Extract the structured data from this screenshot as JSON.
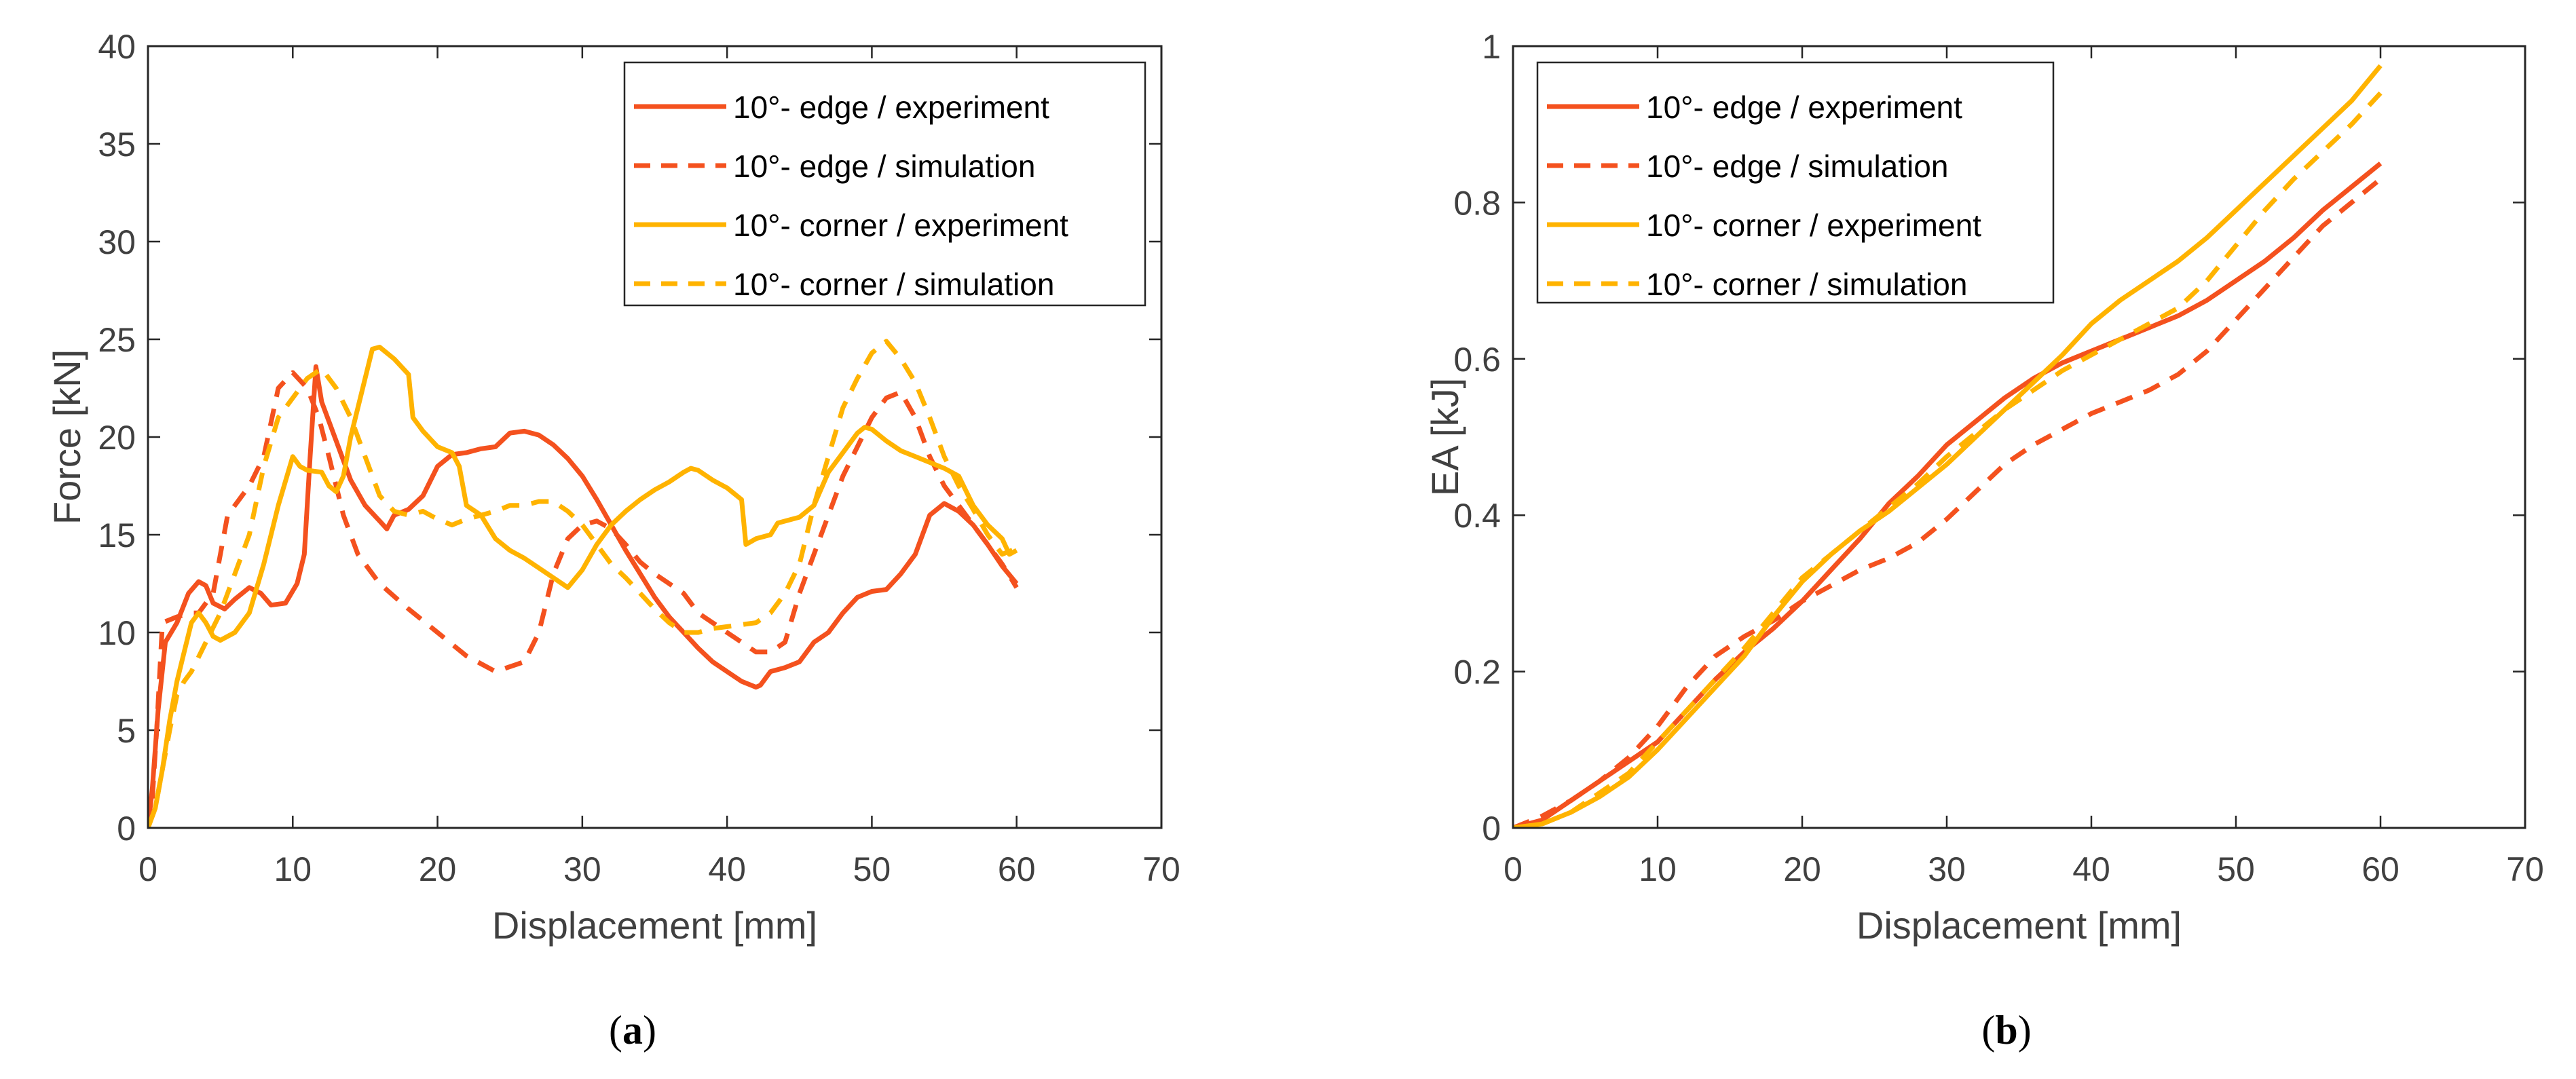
{
  "colors": {
    "edge": "#F4511E",
    "corner": "#FFB300",
    "axis": "#262626"
  },
  "captions": [
    {
      "open": "(",
      "letter": "a",
      "close": ")"
    },
    {
      "open": "(",
      "letter": "b",
      "close": ")"
    }
  ],
  "chart_data": [
    {
      "type": "line",
      "xlabel": "Displacement [mm]",
      "ylabel": "Force [kN]",
      "xlim": [
        0,
        70
      ],
      "ylim": [
        0,
        40
      ],
      "xticks": [
        0,
        10,
        20,
        30,
        40,
        50,
        60,
        70
      ],
      "yticks": [
        0,
        5,
        10,
        15,
        20,
        25,
        30,
        35,
        40
      ],
      "grid": false,
      "legend_position": "top-right",
      "series": [
        {
          "name": "10°- edge / experiment",
          "color_key": "edge",
          "style": "solid",
          "x": [
            0,
            0.3,
            0.7,
            1.2,
            2,
            2.8,
            3.5,
            4,
            4.5,
            5.3,
            6,
            7,
            7.8,
            8.5,
            9.5,
            10.3,
            10.8,
            11.2,
            11.6,
            12,
            13,
            14,
            15,
            16,
            16.5,
            17,
            18,
            19,
            20,
            21,
            22,
            23,
            24,
            25,
            26,
            27,
            28,
            29,
            30,
            31,
            32,
            33,
            34,
            35,
            36,
            37,
            38,
            39,
            40,
            41,
            42,
            42.3,
            43,
            44,
            45,
            46,
            47,
            48,
            49,
            50,
            51,
            52,
            53,
            54,
            55,
            56,
            57,
            58,
            59,
            60
          ],
          "y": [
            0,
            2,
            6,
            9.5,
            10.5,
            12,
            12.6,
            12.4,
            11.5,
            11.2,
            11.7,
            12.3,
            12,
            11.4,
            11.5,
            12.5,
            14,
            19,
            23.6,
            21.8,
            19.8,
            17.8,
            16.5,
            15.7,
            15.3,
            16,
            16.3,
            17,
            18.5,
            19.1,
            19.2,
            19.4,
            19.5,
            20.2,
            20.3,
            20.1,
            19.6,
            18.9,
            18,
            16.8,
            15.5,
            14.2,
            13,
            11.8,
            10.8,
            10,
            9.2,
            8.5,
            8,
            7.5,
            7.2,
            7.3,
            8,
            8.2,
            8.5,
            9.5,
            10,
            11,
            11.8,
            12.1,
            12.2,
            13,
            14,
            16,
            16.6,
            16.2,
            15.5,
            14.5,
            13.4,
            12.5
          ]
        },
        {
          "name": "10°- edge / simulation",
          "color_key": "edge",
          "style": "dashed",
          "x": [
            0,
            0.3,
            0.6,
            1,
            2,
            3,
            3.5,
            4.5,
            5.5,
            7,
            8,
            9,
            10,
            11,
            11.8,
            12.5,
            13.5,
            14.5,
            16,
            18,
            20,
            22,
            24,
            26,
            27,
            28,
            29,
            30,
            31,
            32,
            33,
            34,
            35,
            36,
            37,
            38,
            40,
            41,
            42,
            43,
            44,
            45,
            46,
            47,
            48,
            49,
            50,
            51,
            52,
            53,
            54,
            55,
            56,
            57,
            58,
            59,
            60
          ],
          "y": [
            0,
            1.5,
            5,
            10.5,
            10.8,
            11,
            11,
            12,
            16,
            17.5,
            19,
            22.5,
            23.3,
            22.5,
            21,
            19,
            16,
            14,
            12.5,
            11.2,
            10,
            8.8,
            8,
            8.5,
            10,
            13,
            14.8,
            15.5,
            15.7,
            15.3,
            14.5,
            13.6,
            13,
            12.5,
            12,
            11,
            10,
            9.5,
            9,
            9,
            9.5,
            12,
            14,
            16,
            18,
            19.5,
            21,
            22,
            22.3,
            21,
            19,
            17.5,
            16.5,
            15.5,
            14.5,
            13.5,
            12.3
          ]
        },
        {
          "name": "10°- corner / experiment",
          "color_key": "corner",
          "style": "solid",
          "x": [
            0,
            0.5,
            1,
            1.5,
            2,
            2.5,
            3,
            3.5,
            4,
            4.5,
            5,
            6,
            7,
            8,
            9,
            10,
            10.5,
            11,
            12,
            12.5,
            13,
            13.5,
            14,
            15,
            15.5,
            16,
            17,
            18,
            18.3,
            19,
            20,
            21,
            21.5,
            22,
            23,
            24,
            25,
            26,
            27,
            28,
            29,
            30,
            31,
            32,
            33,
            34,
            35,
            36,
            37,
            37.5,
            38,
            39,
            40,
            41,
            41.3,
            42,
            43,
            43.5,
            45,
            46,
            47,
            48,
            49,
            49.5,
            50,
            51,
            52,
            53,
            54,
            55,
            56,
            57,
            58,
            59,
            59.5,
            60
          ],
          "y": [
            0,
            1,
            3,
            5.5,
            7.5,
            9,
            10.5,
            11,
            10.5,
            9.8,
            9.6,
            10,
            11,
            13.5,
            16.5,
            19,
            18.5,
            18.3,
            18.2,
            17.5,
            17.2,
            18,
            20,
            23,
            24.5,
            24.6,
            24,
            23.2,
            21,
            20.3,
            19.5,
            19.2,
            18.5,
            16.5,
            16,
            14.8,
            14.2,
            13.8,
            13.3,
            12.8,
            12.3,
            13.2,
            14.5,
            15.5,
            16.2,
            16.8,
            17.3,
            17.7,
            18.2,
            18.4,
            18.3,
            17.8,
            17.4,
            16.8,
            14.5,
            14.8,
            15,
            15.6,
            15.9,
            16.5,
            18.2,
            19.2,
            20.2,
            20.5,
            20.4,
            19.8,
            19.3,
            19,
            18.7,
            18.4,
            18,
            16.5,
            15.5,
            14.8,
            14,
            14.2
          ]
        },
        {
          "name": "10°- corner / simulation",
          "color_key": "corner",
          "style": "dashed",
          "x": [
            0,
            0.5,
            1,
            1.5,
            2,
            2.5,
            3,
            4,
            5,
            6,
            7,
            8,
            9,
            10,
            11,
            12,
            13,
            14,
            15,
            16,
            17,
            18,
            19,
            20,
            21,
            22,
            23,
            24,
            25,
            26,
            27,
            28,
            29,
            30,
            31,
            32,
            33,
            34,
            35,
            36,
            37,
            38,
            39,
            40,
            41,
            42,
            43,
            44,
            45,
            46,
            47,
            48,
            49,
            50,
            51,
            52,
            53,
            54,
            55,
            56,
            57,
            58,
            59,
            60
          ],
          "y": [
            0,
            1,
            3,
            5,
            6.8,
            7.5,
            8,
            9.5,
            11,
            13,
            15,
            18.5,
            21,
            22,
            23,
            23.5,
            22.5,
            21,
            19,
            17,
            16.2,
            16,
            16.2,
            15.8,
            15.5,
            15.8,
            16,
            16.2,
            16.5,
            16.5,
            16.7,
            16.7,
            16.2,
            15.5,
            14.5,
            13.5,
            12.8,
            12,
            11.2,
            10.5,
            10,
            10,
            10.2,
            10.3,
            10.4,
            10.5,
            11,
            12,
            13.5,
            16.5,
            19,
            21.5,
            23,
            24.3,
            24.9,
            24,
            22.8,
            21,
            19,
            17.5,
            16.3,
            15,
            14,
            14.3
          ]
        }
      ]
    },
    {
      "type": "line",
      "xlabel": "Displacement [mm]",
      "ylabel": "EA [kJ]",
      "xlim": [
        0,
        70
      ],
      "ylim": [
        0,
        1
      ],
      "xticks": [
        0,
        10,
        20,
        30,
        40,
        50,
        60,
        70
      ],
      "yticks": [
        0,
        0.2,
        0.4,
        0.6,
        0.8,
        1
      ],
      "ytick_labels": [
        "0",
        "0.2",
        "0.4",
        "0.6",
        "0.8",
        "1"
      ],
      "grid": false,
      "legend_position": "top-left",
      "series": [
        {
          "name": "10°- edge / experiment",
          "color_key": "edge",
          "style": "solid",
          "x": [
            0,
            2,
            4,
            6,
            8,
            10,
            12,
            14,
            16,
            18,
            20,
            22,
            24,
            26,
            28,
            30,
            32,
            34,
            36,
            38,
            40,
            42,
            44,
            46,
            48,
            50,
            52,
            54,
            56,
            58,
            60
          ],
          "y": [
            0,
            0.01,
            0.035,
            0.06,
            0.085,
            0.11,
            0.15,
            0.19,
            0.225,
            0.255,
            0.29,
            0.33,
            0.37,
            0.415,
            0.45,
            0.49,
            0.52,
            0.55,
            0.575,
            0.595,
            0.61,
            0.625,
            0.64,
            0.655,
            0.675,
            0.7,
            0.725,
            0.755,
            0.79,
            0.82,
            0.85
          ]
        },
        {
          "name": "10°- edge / simulation",
          "color_key": "edge",
          "style": "dashed",
          "x": [
            0,
            2,
            4,
            6,
            8,
            10,
            12,
            14,
            16,
            18,
            20,
            22,
            24,
            26,
            28,
            30,
            32,
            34,
            36,
            38,
            40,
            42,
            44,
            46,
            48,
            50,
            52,
            54,
            56,
            58,
            60
          ],
          "y": [
            0,
            0.015,
            0.035,
            0.06,
            0.09,
            0.13,
            0.18,
            0.22,
            0.245,
            0.265,
            0.29,
            0.31,
            0.33,
            0.345,
            0.365,
            0.395,
            0.43,
            0.465,
            0.49,
            0.51,
            0.53,
            0.545,
            0.56,
            0.58,
            0.61,
            0.65,
            0.69,
            0.73,
            0.77,
            0.8,
            0.83
          ]
        },
        {
          "name": "10°- corner / experiment",
          "color_key": "corner",
          "style": "solid",
          "x": [
            0,
            2,
            4,
            6,
            8,
            10,
            12,
            14,
            16,
            18,
            20,
            22,
            24,
            26,
            28,
            30,
            32,
            34,
            36,
            38,
            40,
            42,
            44,
            46,
            48,
            50,
            52,
            54,
            56,
            58,
            60
          ],
          "y": [
            0,
            0.005,
            0.02,
            0.04,
            0.065,
            0.1,
            0.14,
            0.18,
            0.22,
            0.27,
            0.315,
            0.35,
            0.38,
            0.405,
            0.435,
            0.465,
            0.5,
            0.535,
            0.57,
            0.605,
            0.645,
            0.675,
            0.7,
            0.725,
            0.755,
            0.79,
            0.825,
            0.86,
            0.895,
            0.93,
            0.975
          ]
        },
        {
          "name": "10°- corner / simulation",
          "color_key": "corner",
          "style": "dashed",
          "x": [
            0,
            2,
            4,
            6,
            8,
            10,
            12,
            14,
            16,
            18,
            20,
            22,
            24,
            26,
            28,
            30,
            32,
            34,
            36,
            38,
            40,
            42,
            44,
            46,
            48,
            50,
            52,
            54,
            56,
            58,
            60
          ],
          "y": [
            0,
            0.005,
            0.02,
            0.045,
            0.07,
            0.11,
            0.15,
            0.19,
            0.23,
            0.275,
            0.32,
            0.35,
            0.38,
            0.41,
            0.44,
            0.475,
            0.505,
            0.535,
            0.56,
            0.585,
            0.605,
            0.625,
            0.645,
            0.665,
            0.7,
            0.745,
            0.79,
            0.83,
            0.865,
            0.9,
            0.94
          ]
        }
      ]
    }
  ]
}
